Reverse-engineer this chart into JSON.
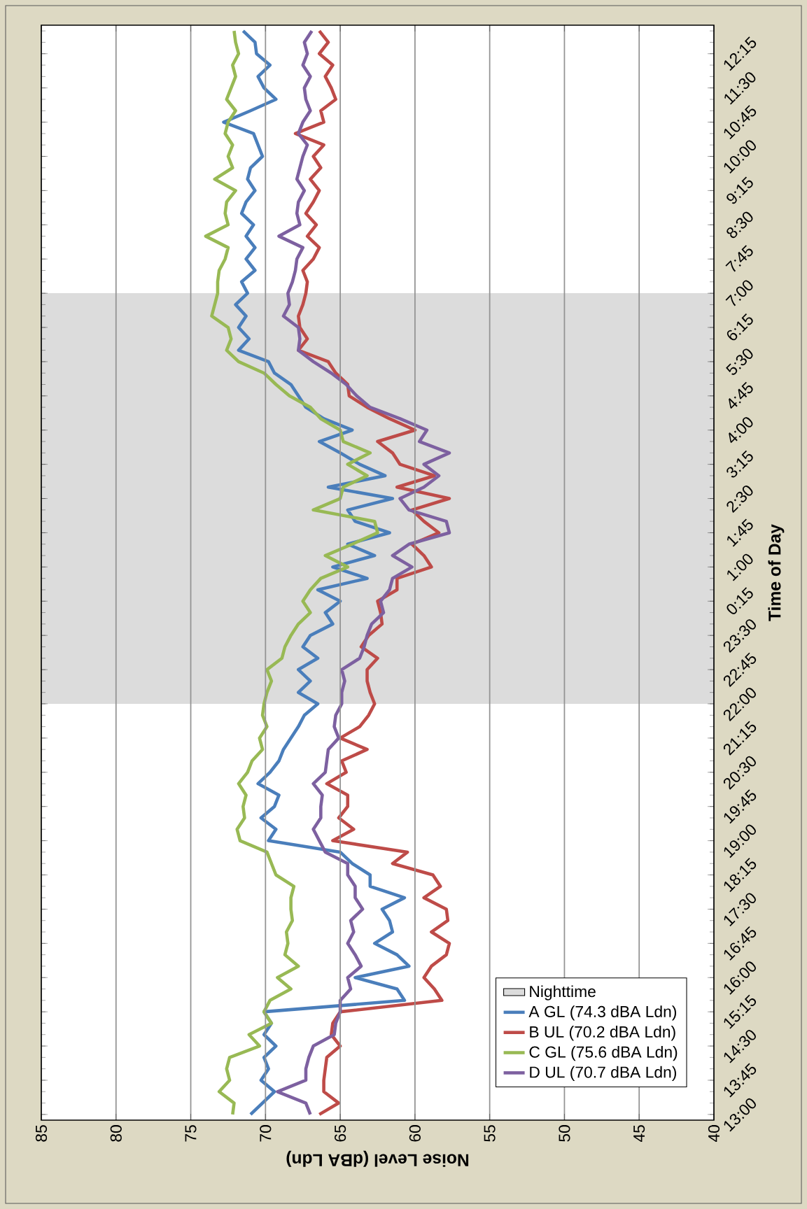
{
  "chart_data": {
    "type": "line",
    "orientation": "horizontal",
    "xlabel": "Noise Level (dBA Ldn)",
    "ylabel": "Time of Day",
    "categories": [
      null,
      null,
      "12:15",
      null,
      null,
      "11:30",
      null,
      null,
      "10:45",
      null,
      null,
      "10:00",
      null,
      null,
      "9:15",
      null,
      null,
      "8:30",
      null,
      null,
      "7:45",
      null,
      null,
      "7:00",
      null,
      null,
      "6:15",
      null,
      null,
      "5:30",
      null,
      null,
      "4:45",
      null,
      null,
      "4:00",
      null,
      null,
      "3:15",
      null,
      null,
      "2:30",
      null,
      null,
      "1:45",
      null,
      null,
      "1:00",
      null,
      null,
      "0:15",
      null,
      null,
      "23:30",
      null,
      null,
      "22:45",
      null,
      null,
      "22:00",
      null,
      null,
      "21:15",
      null,
      null,
      "20:30",
      null,
      null,
      "19:45",
      null,
      null,
      "19:00",
      null,
      null,
      "18:15",
      null,
      null,
      "17:30",
      null,
      null,
      "16:45",
      null,
      null,
      "16:00",
      null,
      null,
      "15:15",
      null,
      null,
      "14:30",
      null,
      null,
      "13:45",
      null,
      null,
      "13:00"
    ],
    "xlim": [
      85,
      40
    ],
    "xticks": [
      40,
      45,
      50,
      55,
      60,
      65,
      70,
      75,
      80,
      85
    ],
    "grid": "x",
    "legend": "bottom right",
    "line_style": "solid",
    "bands": [
      {
        "axis": "y",
        "from": "22:00",
        "to": "7:00",
        "label": "Nighttime",
        "color": "#dcdcdc"
      }
    ],
    "series": [
      {
        "name": "A GL (74.3 dBA Ldn)",
        "color": "#4a7ebb",
        "values": [
          71.5,
          70.7,
          70.6,
          69.7,
          70.5,
          70.1,
          69.3,
          71.0,
          72.8,
          70.8,
          70.5,
          70.2,
          71.0,
          71.2,
          70.7,
          71.3,
          71.6,
          70.8,
          71.3,
          70.7,
          71.3,
          70.7,
          71.6,
          71.2,
          72.0,
          71.3,
          71.8,
          71.1,
          71.8,
          69.8,
          69.4,
          68.3,
          67.8,
          67.3,
          66.1,
          64.2,
          66.4,
          65.0,
          63.7,
          62.0,
          65.8,
          61.5,
          64.5,
          64.0,
          61.7,
          64.5,
          62.7,
          65.5,
          63.2,
          66.5,
          65.0,
          66.0,
          65.5,
          67.0,
          67.5,
          66.5,
          67.8,
          67.0,
          67.8,
          66.5,
          67.4,
          67.8,
          68.3,
          68.8,
          69.1,
          69.7,
          70.5,
          69.1,
          69.4,
          70.3,
          69.3,
          69.8,
          65.0,
          64.2,
          63.0,
          63.0,
          60.7,
          62.2,
          61.7,
          61.5,
          62.7,
          61.2,
          60.4,
          64.0,
          61.2,
          60.7,
          70.1,
          69.6,
          70.1,
          69.3,
          70.1,
          69.8,
          70.3,
          69.4,
          70.2,
          71.0
        ]
      },
      {
        "name": "B UL (70.2 dBA Ldn)",
        "color": "#be4b48",
        "values": [
          66.4,
          65.8,
          66.4,
          65.5,
          66.0,
          65.6,
          65.3,
          66.3,
          66.1,
          68.0,
          66.1,
          66.8,
          66.3,
          67.0,
          66.4,
          66.8,
          67.3,
          66.6,
          67.2,
          66.4,
          66.8,
          67.5,
          67.2,
          67.3,
          67.5,
          67.8,
          67.7,
          67.2,
          67.8,
          65.8,
          65.3,
          64.5,
          64.4,
          63.2,
          61.7,
          60.0,
          62.5,
          61.5,
          61.0,
          58.7,
          61.2,
          57.7,
          60.2,
          59.4,
          58.4,
          60.2,
          59.4,
          58.9,
          61.2,
          61.2,
          62.5,
          62.3,
          62.2,
          63.1,
          63.6,
          62.5,
          63.2,
          63.2,
          63.0,
          62.7,
          63.1,
          63.7,
          65.0,
          63.2,
          64.9,
          64.6,
          65.9,
          64.5,
          64.5,
          65.1,
          64.1,
          65.5,
          60.5,
          61.5,
          58.8,
          58.3,
          59.4,
          57.9,
          57.8,
          58.9,
          57.7,
          57.9,
          58.9,
          59.4,
          58.7,
          58.2,
          65.0,
          65.5,
          65.6,
          65.0,
          65.9,
          66.0,
          66.1,
          66.1,
          65.1,
          66.4
        ]
      },
      {
        "name": "C GL (75.6 dBA Ldn)",
        "color": "#98b954",
        "values": [
          72.1,
          72.0,
          71.8,
          72.2,
          72.0,
          72.3,
          72.6,
          72.0,
          72.5,
          72.7,
          72.2,
          72.5,
          72.2,
          73.4,
          72.0,
          72.6,
          72.7,
          72.5,
          74.0,
          72.5,
          72.7,
          73.1,
          73.2,
          73.2,
          73.4,
          73.6,
          72.5,
          72.3,
          72.6,
          71.8,
          70.1,
          69.3,
          68.4,
          67.0,
          66.3,
          65.0,
          64.8,
          63.0,
          64.5,
          63.2,
          64.8,
          65.0,
          66.8,
          62.7,
          62.5,
          64.2,
          66.0,
          64.5,
          66.3,
          67.0,
          67.5,
          67.0,
          67.8,
          68.3,
          68.7,
          68.9,
          69.9,
          69.6,
          69.9,
          70.1,
          70.2,
          69.9,
          70.4,
          70.2,
          70.9,
          71.2,
          71.8,
          71.3,
          71.5,
          71.4,
          71.9,
          71.7,
          69.9,
          69.6,
          69.3,
          68.1,
          68.3,
          68.3,
          68.2,
          68.6,
          68.5,
          68.7,
          67.8,
          69.2,
          68.3,
          69.7,
          70.1,
          69.6,
          71.1,
          70.4,
          72.4,
          72.6,
          72.4,
          73.1,
          72.1,
          72.2
        ]
      },
      {
        "name": "D UL (70.7 dBA Ldn)",
        "color": "#7d60a0",
        "values": [
          66.9,
          67.4,
          67.2,
          67.5,
          67.0,
          67.4,
          67.3,
          67.0,
          67.5,
          67.8,
          67.2,
          67.5,
          67.7,
          67.9,
          67.4,
          67.8,
          67.9,
          67.7,
          69.1,
          67.5,
          67.9,
          68.0,
          68.2,
          68.5,
          68.4,
          68.8,
          67.8,
          67.7,
          67.8,
          66.8,
          65.6,
          64.6,
          63.9,
          63.0,
          61.0,
          59.2,
          59.7,
          57.7,
          59.4,
          58.4,
          59.4,
          61.0,
          60.4,
          57.9,
          57.7,
          60.4,
          61.5,
          60.2,
          61.5,
          61.7,
          62.3,
          62.1,
          62.9,
          63.2,
          63.4,
          63.7,
          64.9,
          64.7,
          64.9,
          64.9,
          65.3,
          65.4,
          65.1,
          65.8,
          65.9,
          66.0,
          66.8,
          66.2,
          66.3,
          66.3,
          66.8,
          66.4,
          66.0,
          64.5,
          64.5,
          64.0,
          64.0,
          63.5,
          64.3,
          64.1,
          64.5,
          64.0,
          63.6,
          64.5,
          64.3,
          65.0,
          65.0,
          65.3,
          65.4,
          66.8,
          67.1,
          67.3,
          67.3,
          69.2,
          67.3,
          67.0
        ]
      }
    ]
  }
}
